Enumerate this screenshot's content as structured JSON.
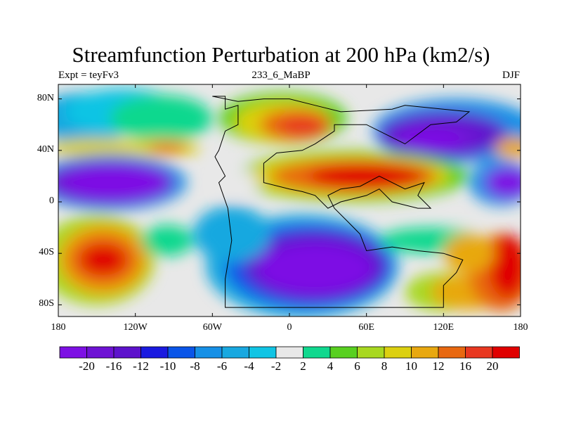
{
  "title": "Streamfunction Perturbation at 200 hPa (km2/s)",
  "subtitle_left": "Expt = teyFv3",
  "subtitle_center": "233_6_MaBP",
  "subtitle_right": "DJF",
  "map": {
    "lat_labels": [
      "80N",
      "40N",
      "0",
      "40S",
      "80S"
    ],
    "lon_labels": [
      "180",
      "120W",
      "60W",
      "0",
      "60E",
      "120E",
      "180"
    ],
    "colorbar_labels": [
      "-20",
      "-16",
      "-12",
      "-10",
      "-8",
      "-6",
      "-4",
      "-2",
      "2",
      "4",
      "6",
      "8",
      "10",
      "12",
      "16",
      "20"
    ],
    "colorbar_colors": [
      "#7d10e4",
      "#6e12d4",
      "#5d12cc",
      "#1a1ae0",
      "#0a55e8",
      "#1690e6",
      "#18a8e0",
      "#10c4e4",
      "#e8e8e8",
      "#10d88e",
      "#58d020",
      "#a8d820",
      "#dcd010",
      "#e8a810",
      "#e86810",
      "#e83820",
      "#e00000"
    ]
  }
}
